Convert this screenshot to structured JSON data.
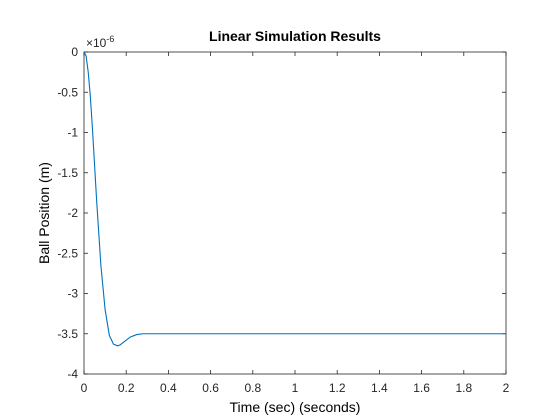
{
  "chart_data": {
    "type": "line",
    "title": "Linear Simulation Results",
    "xlabel": "Time (sec) (seconds)",
    "ylabel": "Ball Position (m)",
    "y_exponent_label": "×10",
    "y_exponent_power": "-6",
    "xlim": [
      0,
      2
    ],
    "ylim": [
      -4,
      0
    ],
    "y_scale_factor": 1e-06,
    "grid": false,
    "x_ticks": [
      0,
      0.2,
      0.4,
      0.6,
      0.8,
      1,
      1.2,
      1.4,
      1.6,
      1.8,
      2
    ],
    "x_tick_labels": [
      "0",
      "0.2",
      "0.4",
      "0.6",
      "0.8",
      "1",
      "1.2",
      "1.4",
      "1.6",
      "1.8",
      "2"
    ],
    "y_ticks": [
      0,
      -0.5,
      -1,
      -1.5,
      -2,
      -2.5,
      -3,
      -3.5,
      -4
    ],
    "y_tick_labels": [
      "0",
      "-0.5",
      "-1",
      "-1.5",
      "-2",
      "-2.5",
      "-3",
      "-3.5",
      "-4"
    ],
    "line_color": "#0072BD",
    "series": [
      {
        "x": [
          0,
          0.01,
          0.02,
          0.03,
          0.04,
          0.05,
          0.06,
          0.08,
          0.1,
          0.12,
          0.14,
          0.16,
          0.17,
          0.18,
          0.2,
          0.22,
          0.25,
          0.28,
          0.3,
          0.35,
          0.4,
          0.6,
          1.0,
          1.5,
          2.0
        ],
        "y": [
          0,
          -0.05,
          -0.25,
          -0.55,
          -0.95,
          -1.4,
          -1.85,
          -2.65,
          -3.2,
          -3.52,
          -3.63,
          -3.65,
          -3.64,
          -3.62,
          -3.58,
          -3.54,
          -3.51,
          -3.5,
          -3.5,
          -3.5,
          -3.5,
          -3.5,
          -3.5,
          -3.5,
          -3.5
        ]
      }
    ]
  }
}
